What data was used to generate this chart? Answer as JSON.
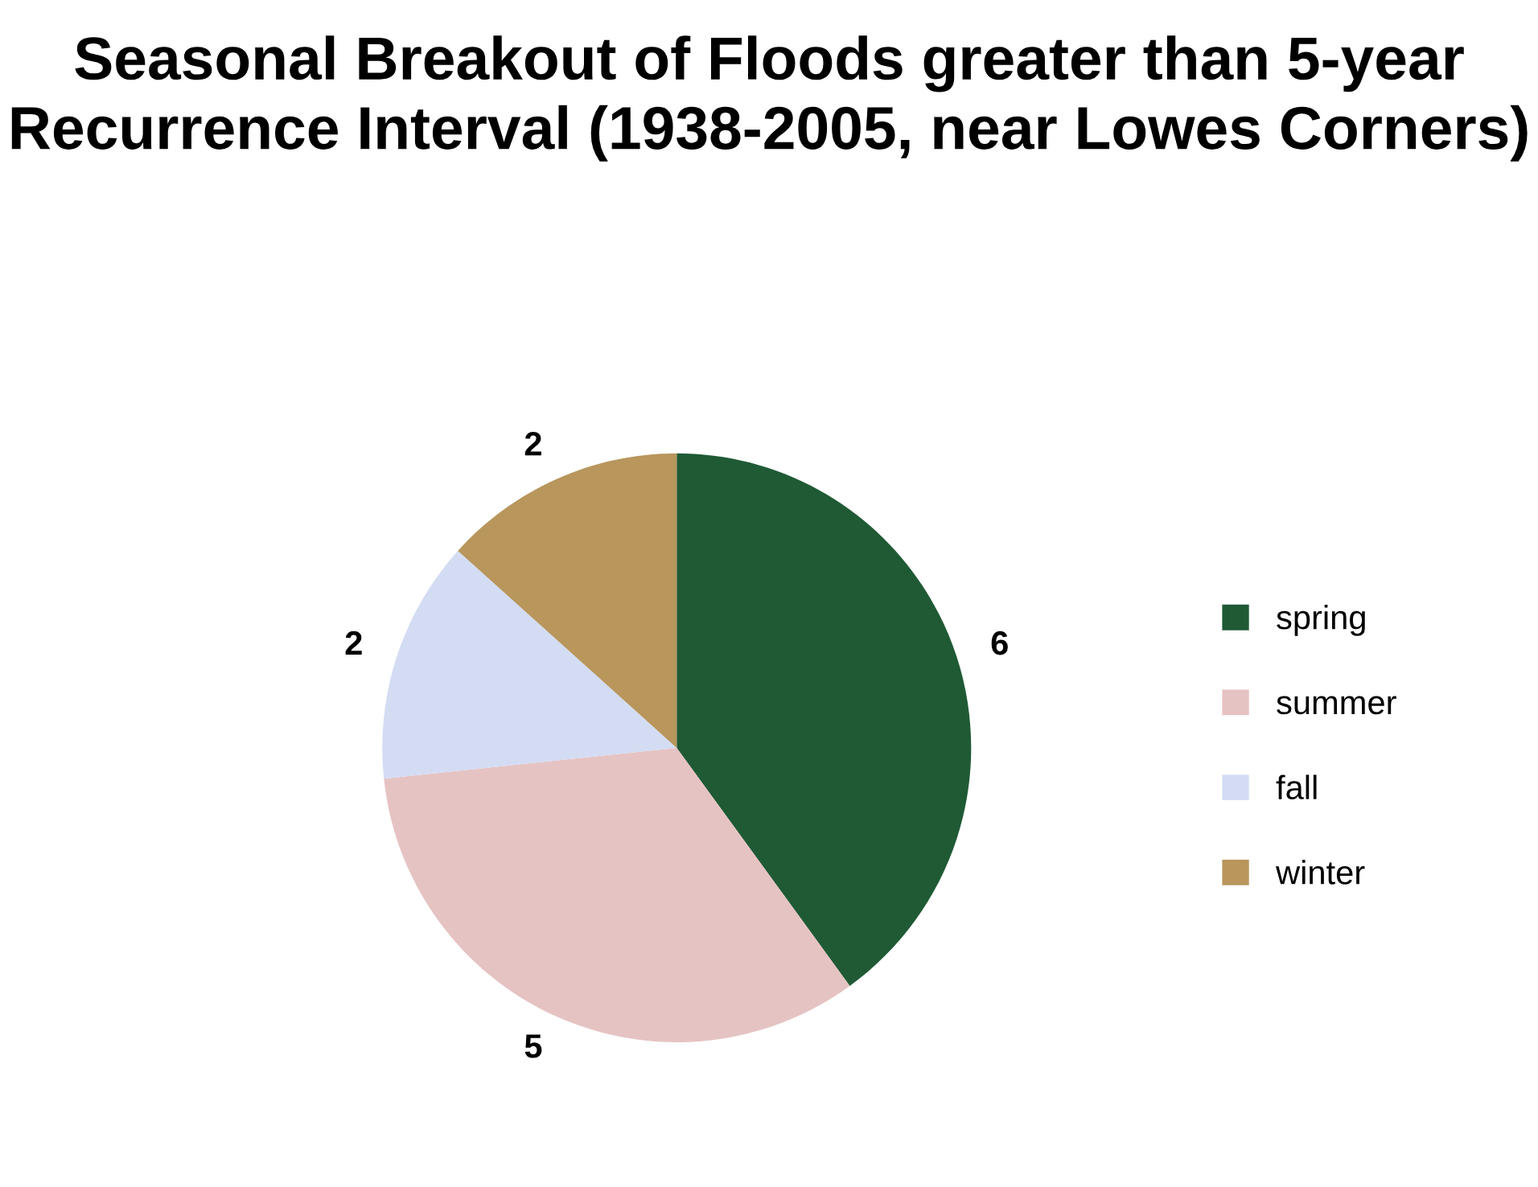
{
  "chart_data": {
    "type": "pie",
    "title": "Seasonal Breakout of Floods greater than 5-year Recurrence Interval (1938-2005, near Lowes Corners)",
    "categories": [
      "spring",
      "summer",
      "fall",
      "winter"
    ],
    "values": [
      6,
      5,
      2,
      2
    ],
    "colors": [
      "#1f5a35",
      "#e6c3c3",
      "#d3dcf3",
      "#b8965c"
    ],
    "data_labels": true,
    "legend": "right"
  }
}
